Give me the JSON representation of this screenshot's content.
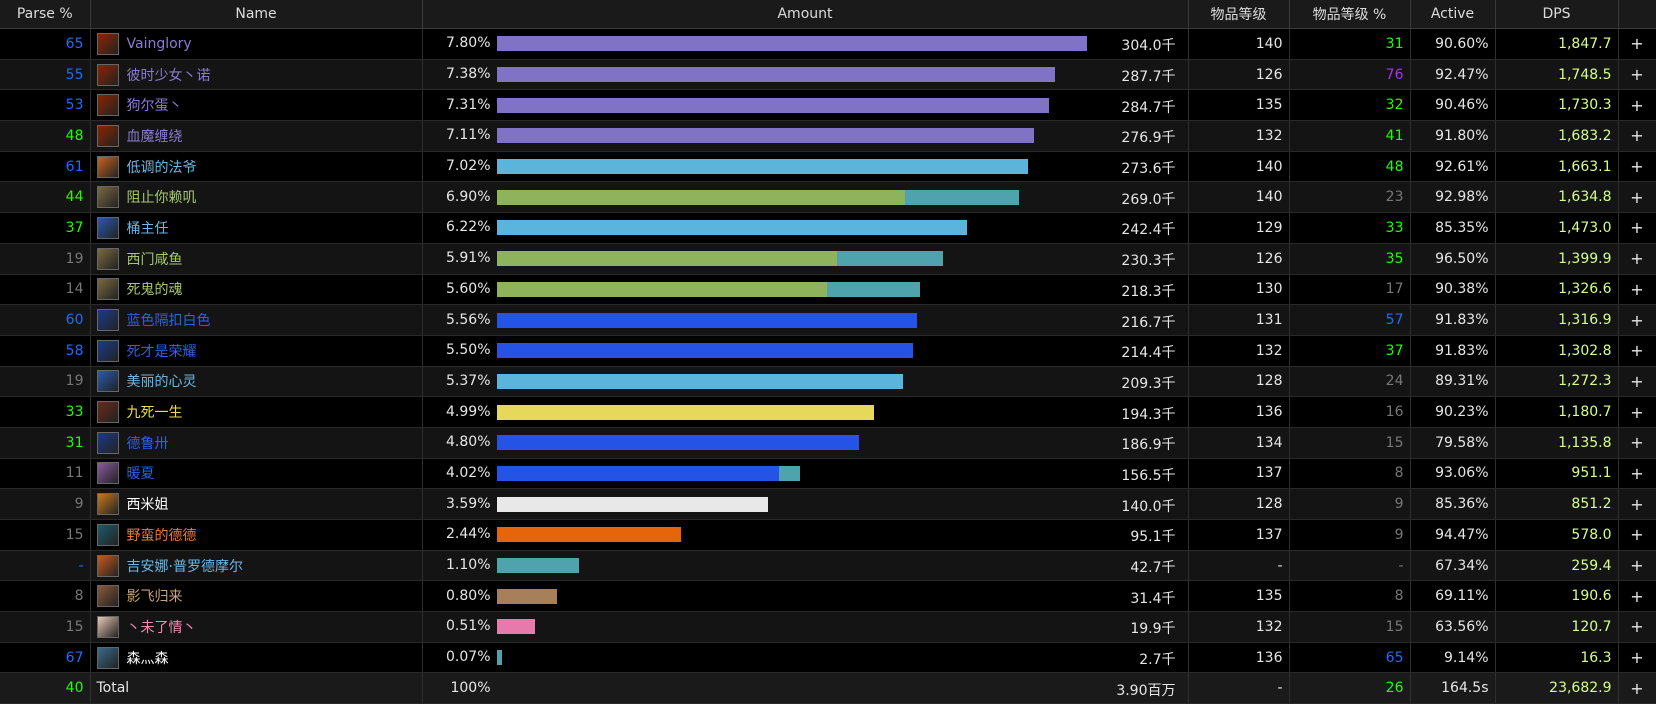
{
  "headers": {
    "parse": "Parse %",
    "name": "Name",
    "amount": "Amount",
    "ilvl": "物品等级",
    "ilvl_pct": "物品等级 %",
    "active": "Active",
    "dps": "DPS"
  },
  "max_amount": 304.0,
  "rows": [
    {
      "parse": "65",
      "parse_color": "#1e6bff",
      "name": "Vainglory",
      "name_color": "#8a7bd1",
      "icon_color": "#8b2500",
      "pct": "7.80%",
      "amount": "304.0千",
      "amount_value": 304.0,
      "bar_color": "#8072c4",
      "bar2_value": 0,
      "bar2_color": "",
      "ilvl": "140",
      "ilvl_pct": "31",
      "ilvl_pct_color": "#1eff00",
      "active": "90.60%",
      "dps": "1,847.7",
      "plus": "+"
    },
    {
      "parse": "55",
      "parse_color": "#1e6bff",
      "name": "彼时少女丶诺",
      "name_color": "#8a7bd1",
      "icon_color": "#8b2500",
      "pct": "7.38%",
      "amount": "287.7千",
      "amount_value": 287.7,
      "bar_color": "#8072c4",
      "bar2_value": 0,
      "bar2_color": "",
      "ilvl": "126",
      "ilvl_pct": "76",
      "ilvl_pct_color": "#a335ee",
      "active": "92.47%",
      "dps": "1,748.5",
      "plus": "+"
    },
    {
      "parse": "53",
      "parse_color": "#1e6bff",
      "name": "狗尔蛋丶",
      "name_color": "#8a7bd1",
      "icon_color": "#8b2500",
      "pct": "7.31%",
      "amount": "284.7千",
      "amount_value": 284.7,
      "bar_color": "#8072c4",
      "bar2_value": 0,
      "bar2_color": "",
      "ilvl": "135",
      "ilvl_pct": "32",
      "ilvl_pct_color": "#1eff00",
      "active": "90.46%",
      "dps": "1,730.3",
      "plus": "+"
    },
    {
      "parse": "48",
      "parse_color": "#1eff00",
      "name": "血魔缠绕",
      "name_color": "#8a7bd1",
      "icon_color": "#8b2500",
      "pct": "7.11%",
      "amount": "276.9千",
      "amount_value": 276.9,
      "bar_color": "#8072c4",
      "bar2_value": 0,
      "bar2_color": "",
      "ilvl": "132",
      "ilvl_pct": "41",
      "ilvl_pct_color": "#1eff00",
      "active": "91.80%",
      "dps": "1,683.2",
      "plus": "+"
    },
    {
      "parse": "61",
      "parse_color": "#1e6bff",
      "name": "低调的法爷",
      "name_color": "#69b8e6",
      "icon_color": "#c8641e",
      "pct": "7.02%",
      "amount": "273.6千",
      "amount_value": 273.6,
      "bar_color": "#5ab4dc",
      "bar2_value": 0,
      "bar2_color": "",
      "ilvl": "140",
      "ilvl_pct": "48",
      "ilvl_pct_color": "#1eff00",
      "active": "92.61%",
      "dps": "1,663.1",
      "plus": "+"
    },
    {
      "parse": "44",
      "parse_color": "#1eff00",
      "name": "阻止你赖叽",
      "name_color": "#a5c86e",
      "icon_color": "#7a6a40",
      "pct": "6.90%",
      "amount": "269.0千",
      "amount_value": 269.0,
      "bar_color": "#8fb35c",
      "bar2_value": 58.5,
      "bar2_color": "#4fa3ad",
      "ilvl": "140",
      "ilvl_pct": "23",
      "ilvl_pct_color": "#777777",
      "active": "92.98%",
      "dps": "1,634.8",
      "plus": "+"
    },
    {
      "parse": "37",
      "parse_color": "#1eff00",
      "name": "桶主任",
      "name_color": "#69b8e6",
      "icon_color": "#2a5ab0",
      "pct": "6.22%",
      "amount": "242.4千",
      "amount_value": 242.4,
      "bar_color": "#5ab4dc",
      "bar2_value": 0,
      "bar2_color": "",
      "ilvl": "129",
      "ilvl_pct": "33",
      "ilvl_pct_color": "#1eff00",
      "active": "85.35%",
      "dps": "1,473.0",
      "plus": "+"
    },
    {
      "parse": "19",
      "parse_color": "#777777",
      "name": "西门咸鱼",
      "name_color": "#a5c86e",
      "icon_color": "#7a6a40",
      "pct": "5.91%",
      "amount": "230.3千",
      "amount_value": 230.3,
      "bar_color": "#8fb35c",
      "bar2_value": 54.7,
      "bar2_color": "#4fa3ad",
      "ilvl": "126",
      "ilvl_pct": "35",
      "ilvl_pct_color": "#1eff00",
      "active": "96.50%",
      "dps": "1,399.9",
      "plus": "+"
    },
    {
      "parse": "14",
      "parse_color": "#777777",
      "name": "死鬼的魂",
      "name_color": "#a5c86e",
      "icon_color": "#7a6a40",
      "pct": "5.60%",
      "amount": "218.3千",
      "amount_value": 218.3,
      "bar_color": "#8fb35c",
      "bar2_value": 48.2,
      "bar2_color": "#4fa3ad",
      "ilvl": "130",
      "ilvl_pct": "17",
      "ilvl_pct_color": "#777777",
      "active": "90.38%",
      "dps": "1,326.6",
      "plus": "+"
    },
    {
      "parse": "60",
      "parse_color": "#1e6bff",
      "name": "蓝色隔扣白色",
      "name_color": "#2b62e0",
      "icon_color": "#1a3a8a",
      "pct": "5.56%",
      "amount": "216.7千",
      "amount_value": 216.7,
      "bar_color": "#2453e6",
      "bar2_value": 0,
      "bar2_color": "",
      "ilvl": "131",
      "ilvl_pct": "57",
      "ilvl_pct_color": "#1e6bff",
      "active": "91.83%",
      "dps": "1,316.9",
      "plus": "+"
    },
    {
      "parse": "58",
      "parse_color": "#1e6bff",
      "name": "死才是荣耀",
      "name_color": "#2b62e0",
      "icon_color": "#1a3a8a",
      "pct": "5.50%",
      "amount": "214.4千",
      "amount_value": 214.4,
      "bar_color": "#2453e6",
      "bar2_value": 0,
      "bar2_color": "",
      "ilvl": "132",
      "ilvl_pct": "37",
      "ilvl_pct_color": "#1eff00",
      "active": "91.83%",
      "dps": "1,302.8",
      "plus": "+"
    },
    {
      "parse": "19",
      "parse_color": "#777777",
      "name": "美丽的心灵",
      "name_color": "#69b8e6",
      "icon_color": "#2a5ab0",
      "pct": "5.37%",
      "amount": "209.3千",
      "amount_value": 209.3,
      "bar_color": "#5ab4dc",
      "bar2_value": 0,
      "bar2_color": "",
      "ilvl": "128",
      "ilvl_pct": "24",
      "ilvl_pct_color": "#777777",
      "active": "89.31%",
      "dps": "1,272.3",
      "plus": "+"
    },
    {
      "parse": "33",
      "parse_color": "#1eff00",
      "name": "九死一生",
      "name_color": "#f0dc5a",
      "icon_color": "#6b2a1a",
      "pct": "4.99%",
      "amount": "194.3千",
      "amount_value": 194.3,
      "bar_color": "#e6d85a",
      "bar2_value": 0,
      "bar2_color": "",
      "ilvl": "136",
      "ilvl_pct": "16",
      "ilvl_pct_color": "#777777",
      "active": "90.23%",
      "dps": "1,180.7",
      "plus": "+"
    },
    {
      "parse": "31",
      "parse_color": "#1eff00",
      "name": "德鲁卅",
      "name_color": "#2b62e0",
      "icon_color": "#1a3a8a",
      "pct": "4.80%",
      "amount": "186.9千",
      "amount_value": 186.9,
      "bar_color": "#2453e6",
      "bar2_value": 0,
      "bar2_color": "",
      "ilvl": "134",
      "ilvl_pct": "15",
      "ilvl_pct_color": "#777777",
      "active": "79.58%",
      "dps": "1,135.8",
      "plus": "+"
    },
    {
      "parse": "11",
      "parse_color": "#777777",
      "name": "暖夏",
      "name_color": "#2b62e0",
      "icon_color": "#8a5aa0",
      "pct": "4.02%",
      "amount": "156.5千",
      "amount_value": 156.5,
      "bar_color": "#2453e6",
      "bar2_value": 11.0,
      "bar2_color": "#4fa3ad",
      "ilvl": "137",
      "ilvl_pct": "8",
      "ilvl_pct_color": "#777777",
      "active": "93.06%",
      "dps": "951.1",
      "plus": "+"
    },
    {
      "parse": "9",
      "parse_color": "#777777",
      "name": "西米姐",
      "name_color": "#ffffff",
      "icon_color": "#c87a1e",
      "pct": "3.59%",
      "amount": "140.0千",
      "amount_value": 140.0,
      "bar_color": "#e8e8e8",
      "bar2_value": 0,
      "bar2_color": "",
      "ilvl": "128",
      "ilvl_pct": "9",
      "ilvl_pct_color": "#777777",
      "active": "85.36%",
      "dps": "851.2",
      "plus": "+"
    },
    {
      "parse": "15",
      "parse_color": "#777777",
      "name": "野蛮的德德",
      "name_color": "#f07832",
      "icon_color": "#1e5a6a",
      "pct": "2.44%",
      "amount": "95.1千",
      "amount_value": 95.1,
      "bar_color": "#e6640a",
      "bar2_value": 0,
      "bar2_color": "",
      "ilvl": "137",
      "ilvl_pct": "9",
      "ilvl_pct_color": "#777777",
      "active": "94.47%",
      "dps": "578.0",
      "plus": "+"
    },
    {
      "parse": "-",
      "parse_color": "#1e6bff",
      "name": "吉安娜·普罗德摩尔",
      "name_color": "#69b8e6",
      "icon_color": "#c85a1e",
      "pct": "1.10%",
      "amount": "42.7千",
      "amount_value": 42.7,
      "bar_color": "#4fa3ad",
      "bar2_value": 0,
      "bar2_color": "",
      "ilvl": "-",
      "ilvl_pct": "-",
      "ilvl_pct_color": "#777777",
      "active": "67.34%",
      "dps": "259.4",
      "plus": "+"
    },
    {
      "parse": "8",
      "parse_color": "#777777",
      "name": "影飞归来",
      "name_color": "#c8a07a",
      "icon_color": "#8a5a3a",
      "pct": "0.80%",
      "amount": "31.4千",
      "amount_value": 31.4,
      "bar_color": "#a5805a",
      "bar2_value": 0,
      "bar2_color": "",
      "ilvl": "135",
      "ilvl_pct": "8",
      "ilvl_pct_color": "#777777",
      "active": "69.11%",
      "dps": "190.6",
      "plus": "+"
    },
    {
      "parse": "15",
      "parse_color": "#777777",
      "name": "丶未了情丶",
      "name_color": "#f08cb4",
      "icon_color": "#e8c8b4",
      "pct": "0.51%",
      "amount": "19.9千",
      "amount_value": 19.9,
      "bar_color": "#e67aaa",
      "bar2_value": 0,
      "bar2_color": "",
      "ilvl": "132",
      "ilvl_pct": "15",
      "ilvl_pct_color": "#777777",
      "active": "63.56%",
      "dps": "120.7",
      "plus": "+"
    },
    {
      "parse": "67",
      "parse_color": "#1e6bff",
      "name": "森灬森",
      "name_color": "#ffffff",
      "icon_color": "#3a6a8a",
      "pct": "0.07%",
      "amount": "2.7千",
      "amount_value": 2.7,
      "bar_color": "#4fa3ad",
      "bar2_value": 0,
      "bar2_color": "",
      "ilvl": "136",
      "ilvl_pct": "65",
      "ilvl_pct_color": "#1e6bff",
      "active": "9.14%",
      "dps": "16.3",
      "plus": "+"
    }
  ],
  "total": {
    "parse": "40",
    "parse_color": "#1eff00",
    "name": "Total",
    "pct": "100%",
    "amount": "3.90百万",
    "ilvl": "-",
    "ilvl_pct": "26",
    "ilvl_pct_color": "#1eff00",
    "active": "164.5s",
    "dps": "23,682.9",
    "plus": "+"
  }
}
